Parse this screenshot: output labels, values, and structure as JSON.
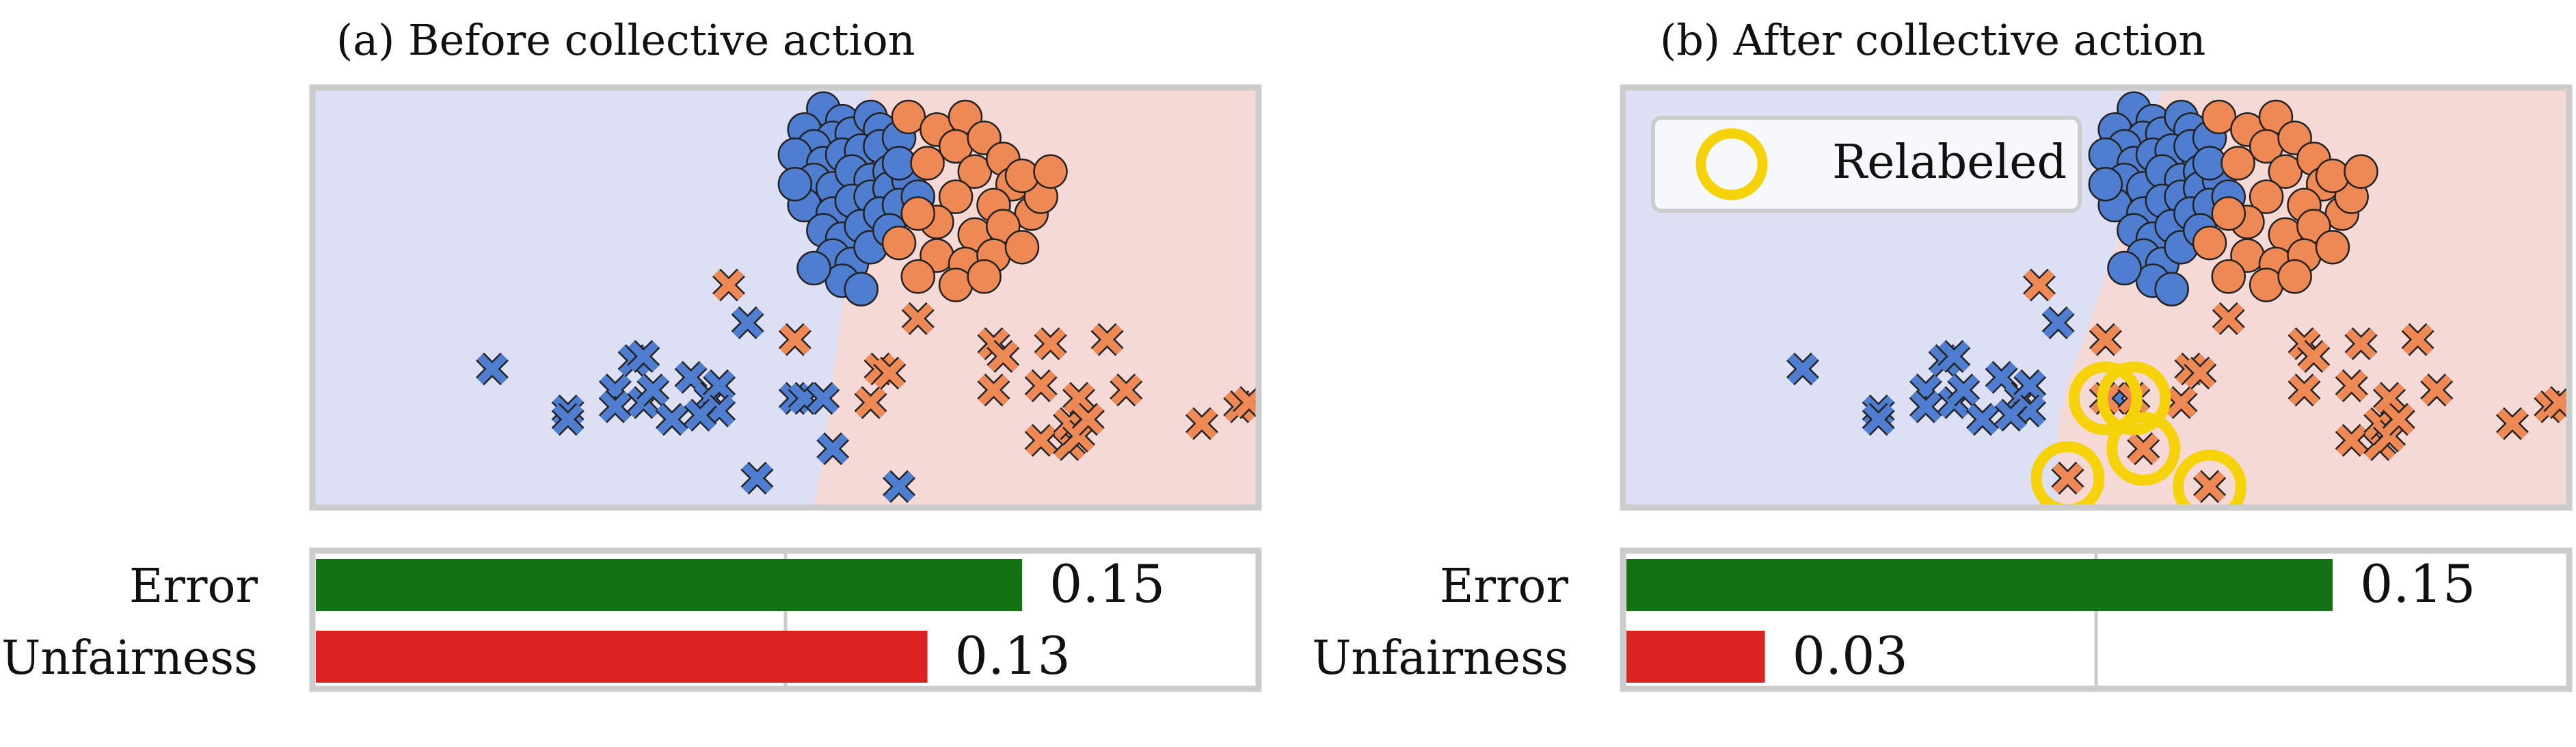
{
  "figure": {
    "panels": [
      {
        "title": "(a) Before collective action"
      },
      {
        "title": "(b) After collective action"
      }
    ],
    "legend_label": "Relabeled"
  },
  "chart_data": [
    {
      "type": "scatter",
      "title": "(a) Before collective action",
      "xlim": [
        0,
        100
      ],
      "ylim": [
        0,
        100
      ],
      "grid": false,
      "background_regions": {
        "left_class_color": "#dde0f5",
        "right_class_color": "#f4d9d7"
      },
      "boundary": [
        [
          59,
          100
        ],
        [
          58,
          80
        ],
        [
          57,
          62
        ],
        [
          56,
          48
        ],
        [
          55,
          30
        ],
        [
          54,
          12
        ],
        [
          53,
          0
        ]
      ],
      "colors": {
        "blue": "#4f7dd0",
        "orange": "#ee8955"
      },
      "series": [
        {
          "marker": "circle",
          "color": "blue",
          "points": [
            [
              54,
              95
            ],
            [
              56,
              92
            ],
            [
              52,
              90
            ],
            [
              55,
              88
            ],
            [
              53,
              86
            ],
            [
              57,
              89
            ],
            [
              59,
              93
            ],
            [
              60,
              90
            ],
            [
              51,
              84
            ],
            [
              54,
              82
            ],
            [
              56,
              84
            ],
            [
              58,
              85
            ],
            [
              60,
              86
            ],
            [
              62,
              88
            ],
            [
              53,
              78
            ],
            [
              55,
              76
            ],
            [
              57,
              80
            ],
            [
              59,
              78
            ],
            [
              61,
              80
            ],
            [
              52,
              72
            ],
            [
              55,
              70
            ],
            [
              57,
              73
            ],
            [
              59,
              74
            ],
            [
              61,
              76
            ],
            [
              63,
              78
            ],
            [
              54,
              66
            ],
            [
              56,
              64
            ],
            [
              58,
              67
            ],
            [
              60,
              70
            ],
            [
              62,
              72
            ],
            [
              55,
              60
            ],
            [
              57,
              58
            ],
            [
              59,
              62
            ],
            [
              56,
              54
            ],
            [
              58,
              52
            ],
            [
              53,
              57
            ],
            [
              61,
              66
            ],
            [
              64,
              74
            ],
            [
              62,
              82
            ],
            [
              51,
              77
            ]
          ]
        },
        {
          "marker": "circle",
          "color": "orange",
          "points": [
            [
              63,
              93
            ],
            [
              66,
              90
            ],
            [
              69,
              93
            ],
            [
              68,
              86
            ],
            [
              71,
              88
            ],
            [
              65,
              82
            ],
            [
              70,
              80
            ],
            [
              73,
              83
            ],
            [
              74,
              77
            ],
            [
              68,
              74
            ],
            [
              72,
              72
            ],
            [
              76,
              70
            ],
            [
              66,
              68
            ],
            [
              70,
              65
            ],
            [
              73,
              67
            ],
            [
              77,
              74
            ],
            [
              66,
              60
            ],
            [
              69,
              58
            ],
            [
              72,
              60
            ],
            [
              75,
              62
            ],
            [
              64,
              55
            ],
            [
              68,
              53
            ],
            [
              71,
              55
            ],
            [
              62,
              63
            ],
            [
              64,
              70
            ],
            [
              75,
              79
            ],
            [
              78,
              80
            ]
          ]
        },
        {
          "marker": "x",
          "color": "blue",
          "points": [
            [
              19,
              33
            ],
            [
              27,
              23
            ],
            [
              27,
              21
            ],
            [
              32,
              28
            ],
            [
              32,
              24
            ],
            [
              34,
              35
            ],
            [
              35,
              36
            ],
            [
              35,
              25
            ],
            [
              36,
              28
            ],
            [
              38,
              21
            ],
            [
              40,
              31
            ],
            [
              42,
              26
            ],
            [
              43,
              29
            ],
            [
              43,
              23
            ],
            [
              41,
              22
            ],
            [
              46,
              44
            ],
            [
              51,
              26
            ],
            [
              52,
              26
            ],
            [
              54,
              26
            ],
            [
              55,
              14
            ],
            [
              47,
              7
            ],
            [
              62,
              5
            ]
          ]
        },
        {
          "marker": "x",
          "color": "orange",
          "points": [
            [
              44,
              53
            ],
            [
              51,
              40
            ],
            [
              59,
              25
            ],
            [
              60,
              33
            ],
            [
              61,
              32
            ],
            [
              64,
              45
            ],
            [
              72,
              39
            ],
            [
              73,
              36
            ],
            [
              72,
              28
            ],
            [
              77,
              29
            ],
            [
              77,
              16
            ],
            [
              80,
              15
            ],
            [
              80,
              20
            ],
            [
              81,
              17
            ],
            [
              81,
              26
            ],
            [
              82,
              21
            ],
            [
              84,
              40
            ],
            [
              86,
              28
            ],
            [
              94,
              20
            ],
            [
              98,
              24
            ],
            [
              99,
              25
            ],
            [
              78,
              39
            ]
          ]
        }
      ]
    },
    {
      "type": "scatter",
      "title": "(b) After collective action",
      "xlim": [
        0,
        100
      ],
      "ylim": [
        0,
        100
      ],
      "grid": false,
      "legend": {
        "position": "top-left",
        "entries": [
          "Relabeled"
        ]
      },
      "background_regions": {
        "left_class_color": "#dde0f5",
        "right_class_color": "#f4d9d7"
      },
      "boundary": [
        [
          57,
          100
        ],
        [
          55,
          82
        ],
        [
          53,
          68
        ],
        [
          51,
          55
        ],
        [
          49,
          42
        ],
        [
          47,
          30
        ],
        [
          46,
          20
        ],
        [
          46,
          0
        ]
      ],
      "colors": {
        "blue": "#4f7dd0",
        "orange": "#ee8955",
        "ring": "#f6d20a"
      },
      "series": [
        {
          "marker": "circle",
          "color": "blue",
          "points": [
            [
              54,
              95
            ],
            [
              56,
              92
            ],
            [
              52,
              90
            ],
            [
              55,
              88
            ],
            [
              53,
              86
            ],
            [
              57,
              89
            ],
            [
              59,
              93
            ],
            [
              60,
              90
            ],
            [
              51,
              84
            ],
            [
              54,
              82
            ],
            [
              56,
              84
            ],
            [
              58,
              85
            ],
            [
              60,
              86
            ],
            [
              62,
              88
            ],
            [
              53,
              78
            ],
            [
              55,
              76
            ],
            [
              57,
              80
            ],
            [
              59,
              78
            ],
            [
              61,
              80
            ],
            [
              52,
              72
            ],
            [
              55,
              70
            ],
            [
              57,
              73
            ],
            [
              59,
              74
            ],
            [
              61,
              76
            ],
            [
              63,
              78
            ],
            [
              54,
              66
            ],
            [
              56,
              64
            ],
            [
              58,
              67
            ],
            [
              60,
              70
            ],
            [
              62,
              72
            ],
            [
              55,
              60
            ],
            [
              57,
              58
            ],
            [
              59,
              62
            ],
            [
              56,
              54
            ],
            [
              58,
              52
            ],
            [
              53,
              57
            ],
            [
              61,
              66
            ],
            [
              64,
              74
            ],
            [
              62,
              82
            ],
            [
              51,
              77
            ]
          ]
        },
        {
          "marker": "circle",
          "color": "orange",
          "points": [
            [
              63,
              93
            ],
            [
              66,
              90
            ],
            [
              69,
              93
            ],
            [
              68,
              86
            ],
            [
              71,
              88
            ],
            [
              65,
              82
            ],
            [
              70,
              80
            ],
            [
              73,
              83
            ],
            [
              74,
              77
            ],
            [
              68,
              74
            ],
            [
              72,
              72
            ],
            [
              76,
              70
            ],
            [
              66,
              68
            ],
            [
              70,
              65
            ],
            [
              73,
              67
            ],
            [
              77,
              74
            ],
            [
              66,
              60
            ],
            [
              69,
              58
            ],
            [
              72,
              60
            ],
            [
              75,
              62
            ],
            [
              64,
              55
            ],
            [
              68,
              53
            ],
            [
              71,
              55
            ],
            [
              62,
              63
            ],
            [
              64,
              70
            ],
            [
              75,
              79
            ],
            [
              78,
              80
            ]
          ]
        },
        {
          "marker": "x",
          "color": "blue",
          "points": [
            [
              19,
              33
            ],
            [
              27,
              23
            ],
            [
              27,
              21
            ],
            [
              32,
              28
            ],
            [
              32,
              24
            ],
            [
              34,
              35
            ],
            [
              35,
              36
            ],
            [
              35,
              25
            ],
            [
              36,
              28
            ],
            [
              38,
              21
            ],
            [
              40,
              31
            ],
            [
              42,
              26
            ],
            [
              43,
              29
            ],
            [
              43,
              23
            ],
            [
              41,
              22
            ],
            [
              46,
              44
            ],
            [
              51,
              26
            ],
            [
              52,
              26
            ],
            [
              54,
              26
            ],
            [
              55,
              14
            ],
            [
              47,
              7
            ],
            [
              62,
              5
            ]
          ]
        },
        {
          "marker": "x",
          "color": "orange",
          "points": [
            [
              44,
              53
            ],
            [
              51,
              40
            ],
            [
              59,
              25
            ],
            [
              60,
              33
            ],
            [
              61,
              32
            ],
            [
              64,
              45
            ],
            [
              72,
              39
            ],
            [
              73,
              36
            ],
            [
              72,
              28
            ],
            [
              77,
              29
            ],
            [
              77,
              16
            ],
            [
              80,
              15
            ],
            [
              80,
              20
            ],
            [
              81,
              17
            ],
            [
              81,
              26
            ],
            [
              82,
              21
            ],
            [
              84,
              40
            ],
            [
              86,
              28
            ],
            [
              94,
              20
            ],
            [
              98,
              24
            ],
            [
              99,
              25
            ],
            [
              78,
              39
            ],
            [
              47,
              7
            ],
            [
              55,
              14
            ],
            [
              62,
              5
            ],
            [
              51,
              26
            ],
            [
              54,
              26
            ]
          ]
        },
        {
          "marker": "ring",
          "color": "ring",
          "points": [
            [
              47,
              7
            ],
            [
              55,
              14
            ],
            [
              62,
              5
            ],
            [
              51,
              26
            ],
            [
              54,
              26
            ]
          ]
        }
      ]
    },
    {
      "type": "bar",
      "orientation": "horizontal",
      "categories": [
        "Error",
        "Unfairness"
      ],
      "values": [
        0.15,
        0.13
      ],
      "colors": [
        "#127312",
        "#dd2222"
      ],
      "xlim": [
        0,
        0.2
      ]
    },
    {
      "type": "bar",
      "orientation": "horizontal",
      "categories": [
        "Error",
        "Unfairness"
      ],
      "values": [
        0.15,
        0.03
      ],
      "colors": [
        "#127312",
        "#dd2222"
      ],
      "xlim": [
        0,
        0.2
      ]
    }
  ]
}
